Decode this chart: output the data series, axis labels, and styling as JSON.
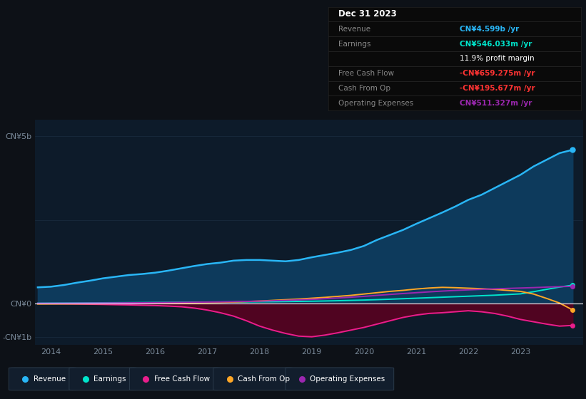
{
  "bg_color": "#0d1117",
  "chart_bg_color": "#0d1b2a",
  "grid_color": "#1a2d40",
  "zero_line_color": "#ffffff",
  "years": [
    2013.75,
    2014.0,
    2014.25,
    2014.5,
    2014.75,
    2015.0,
    2015.25,
    2015.5,
    2015.75,
    2016.0,
    2016.25,
    2016.5,
    2016.75,
    2017.0,
    2017.25,
    2017.5,
    2017.75,
    2018.0,
    2018.25,
    2018.5,
    2018.75,
    2019.0,
    2019.25,
    2019.5,
    2019.75,
    2020.0,
    2020.25,
    2020.5,
    2020.75,
    2021.0,
    2021.25,
    2021.5,
    2021.75,
    2022.0,
    2022.25,
    2022.5,
    2022.75,
    2023.0,
    2023.25,
    2023.5,
    2023.75,
    2024.0
  ],
  "revenue": [
    0.48,
    0.5,
    0.55,
    0.62,
    0.68,
    0.75,
    0.8,
    0.85,
    0.88,
    0.92,
    0.98,
    1.05,
    1.12,
    1.18,
    1.22,
    1.28,
    1.3,
    1.3,
    1.28,
    1.26,
    1.3,
    1.38,
    1.45,
    1.52,
    1.6,
    1.72,
    1.9,
    2.05,
    2.2,
    2.38,
    2.55,
    2.72,
    2.9,
    3.1,
    3.25,
    3.45,
    3.65,
    3.85,
    4.1,
    4.3,
    4.5,
    4.599
  ],
  "earnings": [
    0.005,
    0.008,
    0.01,
    0.012,
    0.015,
    0.018,
    0.02,
    0.022,
    0.025,
    0.028,
    0.03,
    0.032,
    0.035,
    0.038,
    0.04,
    0.042,
    0.045,
    0.048,
    0.05,
    0.055,
    0.06,
    0.065,
    0.072,
    0.08,
    0.09,
    0.1,
    0.112,
    0.125,
    0.14,
    0.155,
    0.17,
    0.185,
    0.2,
    0.215,
    0.23,
    0.245,
    0.265,
    0.285,
    0.35,
    0.42,
    0.49,
    0.546
  ],
  "free_cash_flow": [
    -0.005,
    -0.008,
    -0.012,
    -0.018,
    -0.025,
    -0.03,
    -0.038,
    -0.045,
    -0.055,
    -0.065,
    -0.08,
    -0.1,
    -0.14,
    -0.2,
    -0.28,
    -0.38,
    -0.52,
    -0.68,
    -0.8,
    -0.9,
    -0.98,
    -1.0,
    -0.95,
    -0.88,
    -0.8,
    -0.72,
    -0.62,
    -0.52,
    -0.42,
    -0.35,
    -0.3,
    -0.28,
    -0.25,
    -0.22,
    -0.25,
    -0.3,
    -0.38,
    -0.48,
    -0.55,
    -0.62,
    -0.68,
    -0.659
  ],
  "cash_from_op": [
    -0.018,
    -0.016,
    -0.014,
    -0.012,
    -0.01,
    -0.008,
    -0.005,
    -0.002,
    0.002,
    0.005,
    0.01,
    0.015,
    0.02,
    0.025,
    0.03,
    0.04,
    0.055,
    0.07,
    0.09,
    0.11,
    0.13,
    0.155,
    0.18,
    0.21,
    0.24,
    0.28,
    0.32,
    0.36,
    0.39,
    0.43,
    0.46,
    0.48,
    0.47,
    0.455,
    0.44,
    0.42,
    0.39,
    0.36,
    0.28,
    0.15,
    0.01,
    -0.196
  ],
  "operating_expenses": [
    0.002,
    0.003,
    0.004,
    0.006,
    0.008,
    0.01,
    0.012,
    0.015,
    0.018,
    0.022,
    0.026,
    0.03,
    0.035,
    0.04,
    0.045,
    0.052,
    0.06,
    0.068,
    0.078,
    0.09,
    0.105,
    0.12,
    0.14,
    0.162,
    0.185,
    0.21,
    0.24,
    0.268,
    0.295,
    0.32,
    0.345,
    0.368,
    0.388,
    0.405,
    0.42,
    0.435,
    0.448,
    0.46,
    0.472,
    0.488,
    0.5,
    0.511
  ],
  "revenue_color": "#29b6f6",
  "earnings_color": "#00e5cc",
  "fcf_color": "#e91e8c",
  "cashop_color": "#ffa726",
  "opex_color": "#9c27b0",
  "revenue_fill_color": "#0d3a5c",
  "fcf_fill_color": "#5c0020",
  "ylim_min": -1.25,
  "ylim_max": 5.5,
  "xtick_years": [
    2014,
    2015,
    2016,
    2017,
    2018,
    2019,
    2020,
    2021,
    2022,
    2023
  ],
  "info_box": {
    "date": "Dec 31 2023",
    "revenue_val": "CN¥4.599b",
    "earnings_val": "CN¥546.033m",
    "profit_margin": "11.9%",
    "fcf_val": "-CN¥659.275m",
    "cashop_val": "-CN¥195.677m",
    "opex_val": "CN¥511.327m"
  },
  "legend_items": [
    {
      "label": "Revenue",
      "color": "#29b6f6"
    },
    {
      "label": "Earnings",
      "color": "#00e5cc"
    },
    {
      "label": "Free Cash Flow",
      "color": "#e91e8c"
    },
    {
      "label": "Cash From Op",
      "color": "#ffa726"
    },
    {
      "label": "Operating Expenses",
      "color": "#9c27b0"
    }
  ]
}
